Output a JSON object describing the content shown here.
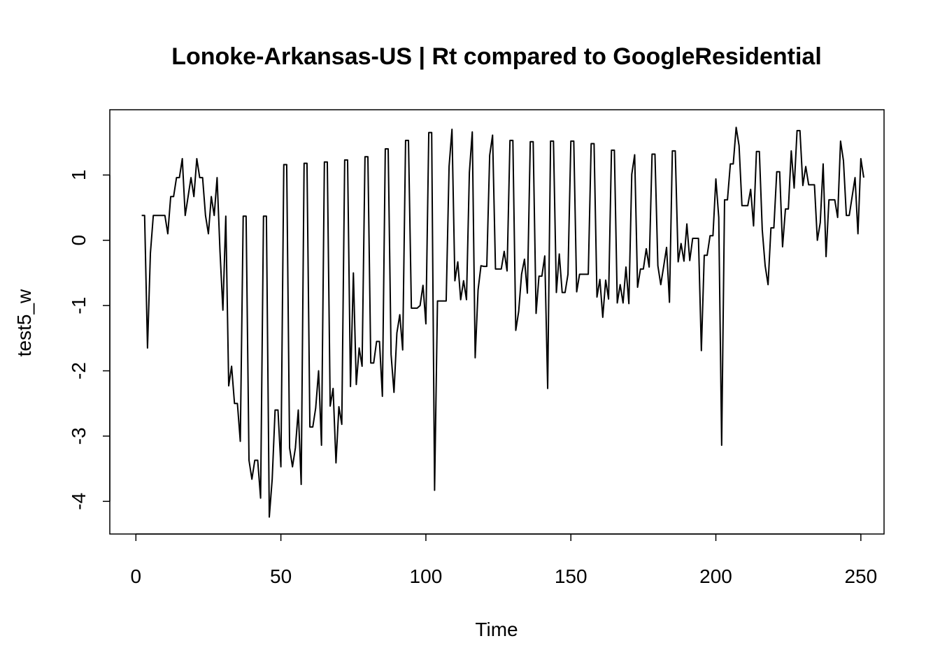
{
  "chart_data": {
    "type": "line",
    "title": "Lonoke-Arkansas-US | Rt compared to GoogleResidential",
    "xlabel": "Time",
    "ylabel": "test5_w",
    "xlim": [
      -9,
      258
    ],
    "ylim": [
      -4.5,
      2
    ],
    "x_ticks": [
      0,
      50,
      100,
      150,
      200,
      250
    ],
    "y_ticks": [
      -4,
      -3,
      -2,
      -1,
      0,
      1
    ],
    "x_tick_labels": [
      "0",
      "50",
      "100",
      "150",
      "200",
      "250"
    ],
    "y_tick_labels": [
      "-4",
      "-3",
      "-2",
      "-1",
      "0",
      "1"
    ],
    "grid": false,
    "series": [
      {
        "color": "#000000",
        "x_start": 2,
        "values": [
          0.38,
          0.38,
          -1.65,
          -0.2,
          0.38,
          0.38,
          0.38,
          0.38,
          0.38,
          0.1,
          0.67,
          0.67,
          0.96,
          0.96,
          1.25,
          0.38,
          0.67,
          0.96,
          0.67,
          1.25,
          0.96,
          0.96,
          0.38,
          0.1,
          0.67,
          0.38,
          0.96,
          -0.17,
          -1.07,
          0.37,
          -2.23,
          -1.93,
          -2.5,
          -2.5,
          -3.08,
          0.37,
          0.37,
          -3.37,
          -3.66,
          -3.37,
          -3.37,
          -3.95,
          0.37,
          0.37,
          -4.24,
          -3.66,
          -2.6,
          -2.6,
          -3.47,
          1.16,
          1.16,
          -3.18,
          -3.47,
          -3.18,
          -2.6,
          -3.74,
          1.18,
          1.18,
          -2.86,
          -2.86,
          -2.57,
          -2.0,
          -3.14,
          1.2,
          1.2,
          -2.54,
          -2.27,
          -3.41,
          -2.55,
          -2.82,
          1.23,
          1.23,
          -2.24,
          -0.5,
          -2.21,
          -1.65,
          -1.93,
          1.28,
          1.28,
          -1.88,
          -1.88,
          -1.55,
          -1.55,
          -2.39,
          1.4,
          1.4,
          -1.75,
          -2.33,
          -1.42,
          -1.14,
          -1.68,
          1.53,
          1.53,
          -1.04,
          -1.04,
          -1.04,
          -1.0,
          -0.69,
          -1.28,
          1.65,
          1.65,
          -3.83,
          -0.93,
          -0.93,
          -0.93,
          -0.93,
          1.13,
          1.7,
          -0.62,
          -0.33,
          -0.91,
          -0.62,
          -0.91,
          1.04,
          1.66,
          -1.8,
          -0.76,
          -0.39,
          -0.4,
          -0.4,
          1.3,
          1.61,
          -0.44,
          -0.44,
          -0.44,
          -0.17,
          -0.47,
          1.53,
          1.53,
          -1.38,
          -1.09,
          -0.52,
          -0.29,
          -0.81,
          1.51,
          1.51,
          -1.12,
          -0.55,
          -0.55,
          -0.24,
          -2.27,
          1.52,
          1.52,
          -0.8,
          -0.21,
          -0.8,
          -0.8,
          -0.52,
          1.52,
          1.52,
          -0.79,
          -0.52,
          -0.52,
          -0.52,
          -0.52,
          1.48,
          1.48,
          -0.87,
          -0.6,
          -1.18,
          -0.61,
          -0.9,
          1.38,
          1.38,
          -0.96,
          -0.68,
          -0.96,
          -0.41,
          -0.97,
          1.01,
          1.31,
          -0.72,
          -0.44,
          -0.44,
          -0.13,
          -0.41,
          1.32,
          1.32,
          -0.39,
          -0.68,
          -0.4,
          -0.11,
          -0.95,
          1.37,
          1.37,
          -0.33,
          -0.05,
          -0.32,
          0.25,
          -0.31,
          0.03,
          0.03,
          0.03,
          -1.69,
          -0.23,
          -0.23,
          0.07,
          0.07,
          0.94,
          0.35,
          -3.14,
          0.62,
          0.62,
          1.17,
          1.17,
          1.73,
          1.45,
          0.53,
          0.53,
          0.53,
          0.78,
          0.22,
          1.36,
          1.36,
          0.16,
          -0.39,
          -0.68,
          0.19,
          0.19,
          1.05,
          1.05,
          -0.1,
          0.48,
          0.48,
          1.37,
          0.8,
          1.68,
          1.68,
          0.84,
          1.13,
          0.85,
          0.85,
          0.85,
          0.0,
          0.27,
          1.17,
          -0.25,
          0.62,
          0.62,
          0.62,
          0.35,
          1.52,
          1.22,
          0.38,
          0.38,
          0.67,
          0.96,
          0.1,
          1.25,
          0.96
        ]
      }
    ]
  }
}
